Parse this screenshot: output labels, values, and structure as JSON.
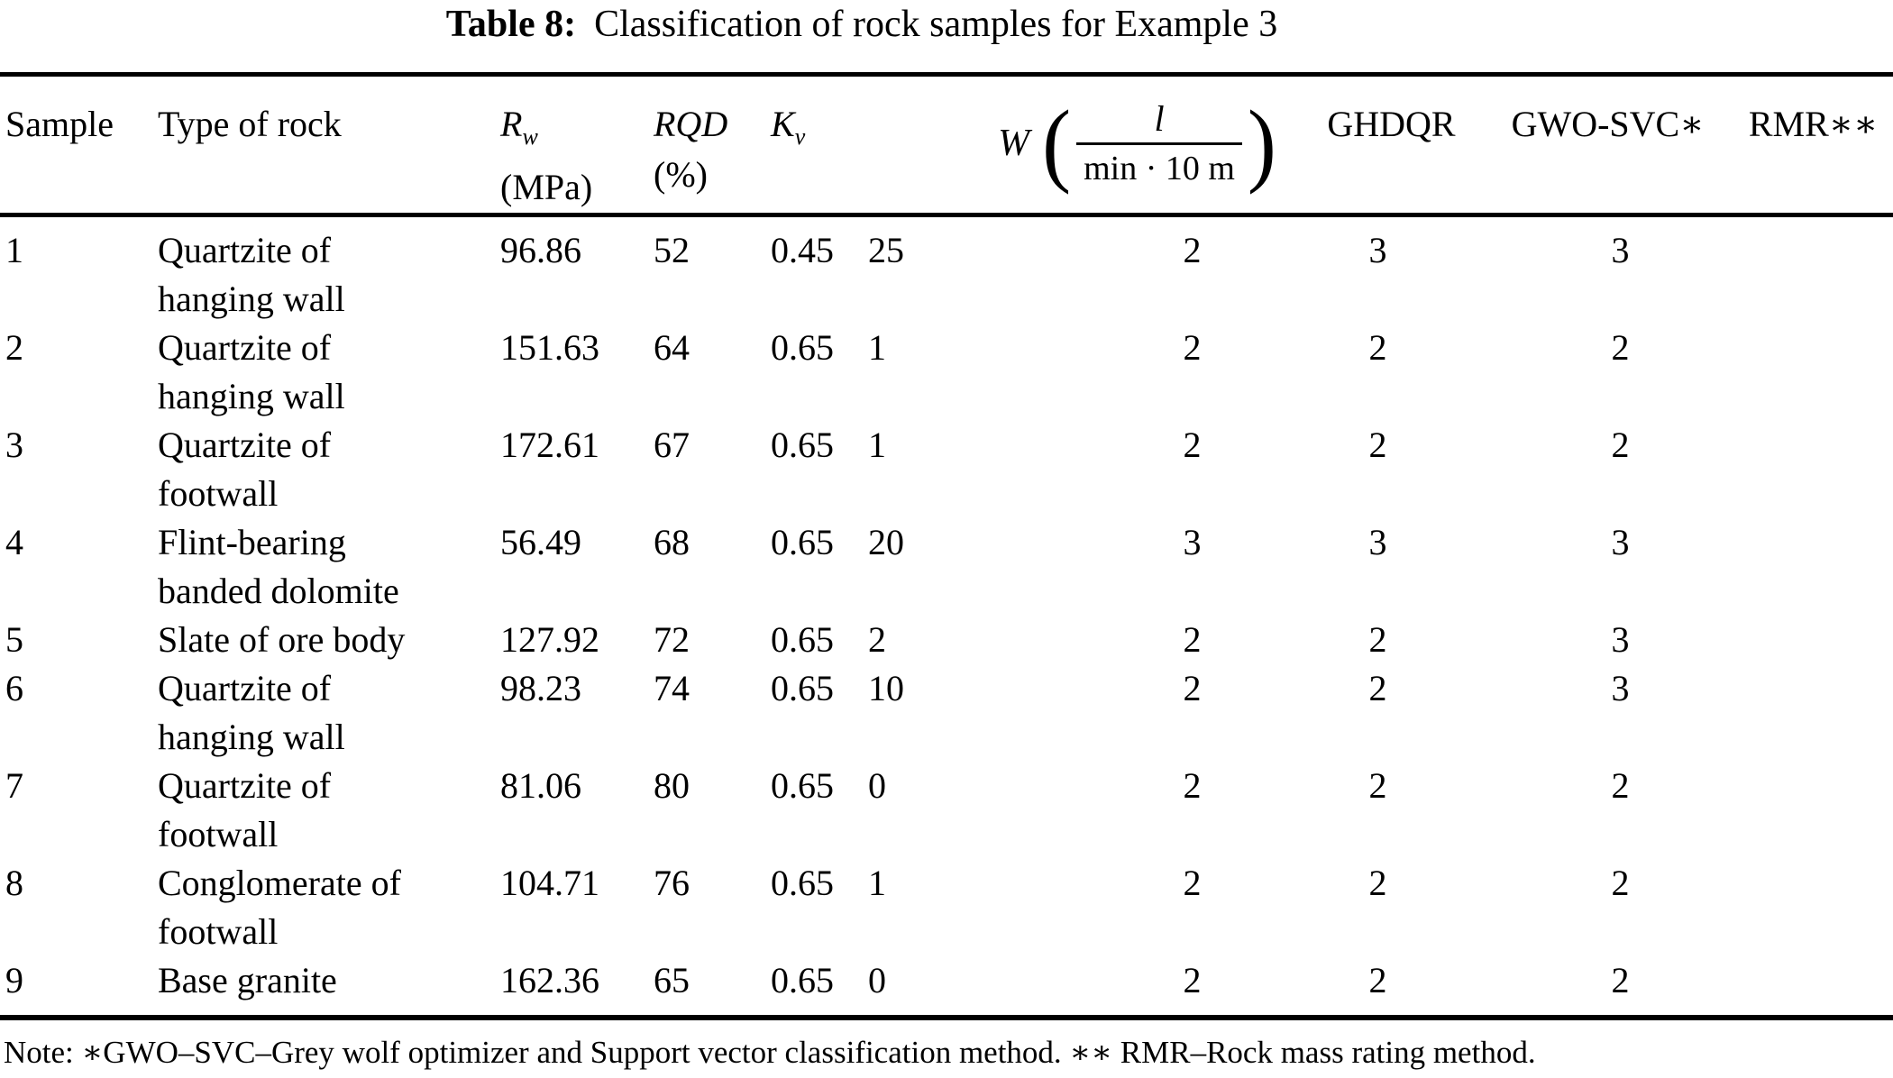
{
  "title": {
    "label": "Table 8:",
    "text": "Classification of rock samples for Example 3"
  },
  "table": {
    "headers": {
      "sample": "Sample",
      "type": "Type of rock",
      "rw_main": "R",
      "rw_sub": "w",
      "rw_unit": "(MPa)",
      "rqd_main": "RQD",
      "rqd_unit": "(%)",
      "kv_main": "K",
      "kv_sub": "v",
      "w_symbol": "W",
      "w_paren_open": "(",
      "w_numerator": "l",
      "w_denominator": "min · 10 m",
      "w_paren_close": ")",
      "ghdqr": "GHDQR",
      "gwo_svc": "GWO-SVC∗",
      "rmr": "RMR∗∗"
    },
    "rows": [
      {
        "sample": "1",
        "type": [
          "Quartzite of",
          "hanging wall"
        ],
        "rw": "96.86",
        "rqd": "52",
        "kv": "0.45",
        "w": "25",
        "ghdqr": "2",
        "gwo_svc": "3",
        "rmr": "3"
      },
      {
        "sample": "2",
        "type": [
          "Quartzite of",
          "hanging wall"
        ],
        "rw": "151.63",
        "rqd": "64",
        "kv": "0.65",
        "w": "1",
        "ghdqr": "2",
        "gwo_svc": "2",
        "rmr": "2"
      },
      {
        "sample": "3",
        "type": [
          "Quartzite of",
          "footwall"
        ],
        "rw": "172.61",
        "rqd": "67",
        "kv": "0.65",
        "w": "1",
        "ghdqr": "2",
        "gwo_svc": "2",
        "rmr": "2"
      },
      {
        "sample": "4",
        "type": [
          "Flint-bearing",
          "banded dolomite"
        ],
        "rw": "56.49",
        "rqd": "68",
        "kv": "0.65",
        "w": "20",
        "ghdqr": "3",
        "gwo_svc": "3",
        "rmr": "3"
      },
      {
        "sample": "5",
        "type": [
          "Slate of ore body"
        ],
        "rw": "127.92",
        "rqd": "72",
        "kv": "0.65",
        "w": "2",
        "ghdqr": "2",
        "gwo_svc": "2",
        "rmr": "3"
      },
      {
        "sample": "6",
        "type": [
          "Quartzite of",
          "hanging wall"
        ],
        "rw": "98.23",
        "rqd": "74",
        "kv": "0.65",
        "w": "10",
        "ghdqr": "2",
        "gwo_svc": "2",
        "rmr": "3"
      },
      {
        "sample": "7",
        "type": [
          "Quartzite of",
          "footwall"
        ],
        "rw": "81.06",
        "rqd": "80",
        "kv": "0.65",
        "w": "0",
        "ghdqr": "2",
        "gwo_svc": "2",
        "rmr": "2"
      },
      {
        "sample": "8",
        "type": [
          "Conglomerate of",
          "footwall"
        ],
        "rw": "104.71",
        "rqd": "76",
        "kv": "0.65",
        "w": "1",
        "ghdqr": "2",
        "gwo_svc": "2",
        "rmr": "2"
      },
      {
        "sample": "9",
        "type": [
          "Base granite"
        ],
        "rw": "162.36",
        "rqd": "65",
        "kv": "0.65",
        "w": "0",
        "ghdqr": "2",
        "gwo_svc": "2",
        "rmr": "2"
      }
    ]
  },
  "note": {
    "text": "Note: ∗GWO–SVC–Grey wolf optimizer and Support vector classification method. ∗∗ RMR–Rock mass rating method."
  }
}
